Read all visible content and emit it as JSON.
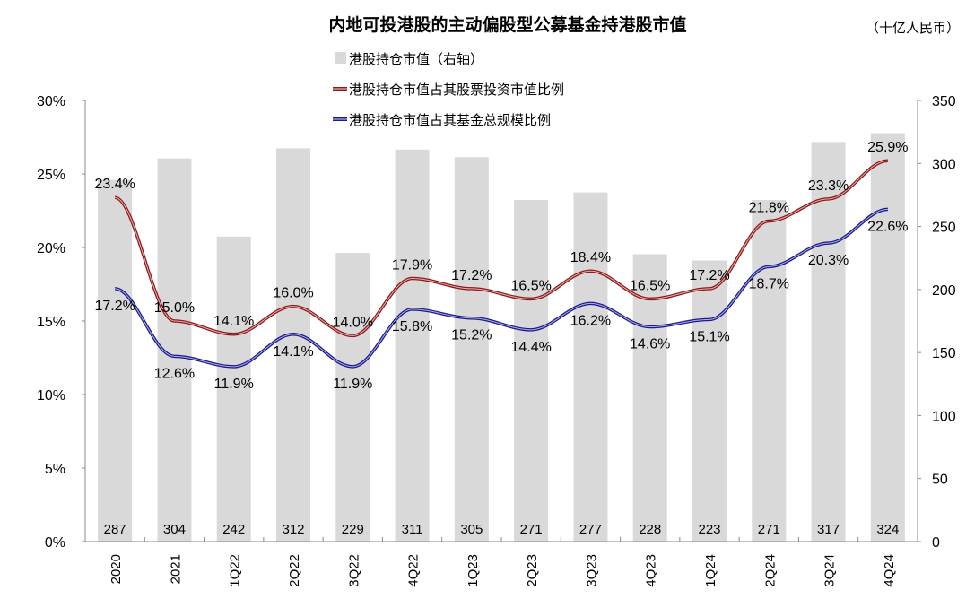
{
  "chart_data": {
    "type": "bar+line",
    "title": "内地可投港股的主动偏股型公募基金持港股市值",
    "unit_label": "（十亿人民币）",
    "categories": [
      "2020",
      "2021",
      "1Q22",
      "2Q22",
      "3Q22",
      "4Q22",
      "1Q23",
      "2Q23",
      "3Q23",
      "4Q23",
      "1Q24",
      "2Q24",
      "3Q24",
      "4Q24"
    ],
    "bars": {
      "name": "港股持仓市值（右轴）",
      "axis": "right",
      "color": "#d9d9d9",
      "values": [
        287,
        304,
        242,
        312,
        229,
        311,
        305,
        271,
        277,
        228,
        223,
        271,
        317,
        324
      ]
    },
    "series": [
      {
        "name": "港股持仓市值占其股票投资市值比例",
        "axis": "left",
        "color": "#8b1a1a",
        "values": [
          23.4,
          15.0,
          14.1,
          16.0,
          14.0,
          17.9,
          17.2,
          16.5,
          18.4,
          16.5,
          17.2,
          21.8,
          23.3,
          25.9
        ]
      },
      {
        "name": "港股持仓市值占其基金总规模比例",
        "axis": "left",
        "color": "#1a1a8b",
        "values": [
          17.2,
          12.6,
          11.9,
          14.1,
          11.9,
          15.8,
          15.2,
          14.4,
          16.2,
          14.6,
          15.1,
          18.7,
          20.3,
          22.6
        ]
      }
    ],
    "left_axis": {
      "ylim": [
        0,
        30
      ],
      "ticks": [
        "0%",
        "5%",
        "10%",
        "15%",
        "20%",
        "25%",
        "30%"
      ]
    },
    "right_axis": {
      "ylim": [
        0,
        350
      ],
      "ticks": [
        "0",
        "50",
        "100",
        "150",
        "200",
        "250",
        "300",
        "350"
      ]
    },
    "grid": false,
    "legend": "top-center"
  }
}
